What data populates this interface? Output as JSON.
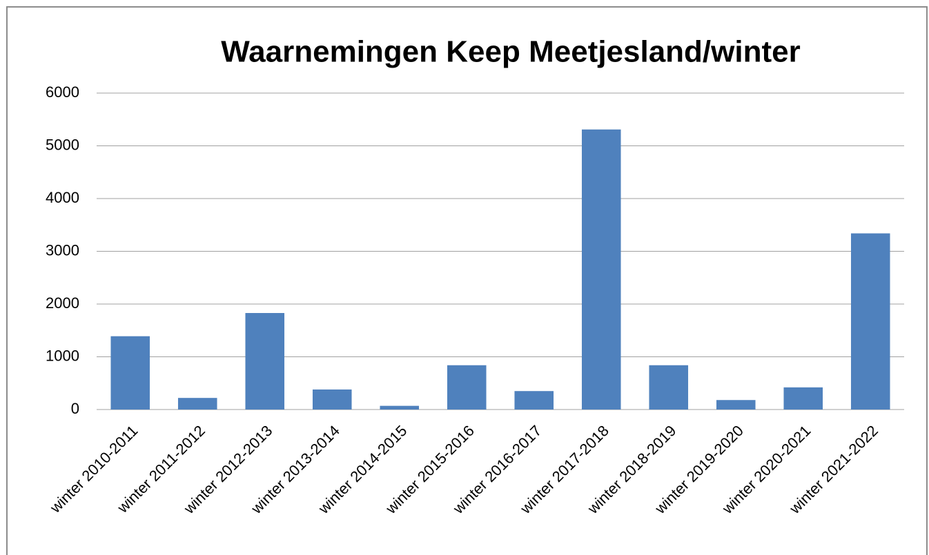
{
  "chart_data": {
    "type": "bar",
    "title": "Waarnemingen Keep Meetjesland/winter",
    "categories": [
      "winter 2010-2011",
      "winter 2011-2012",
      "winter 2012-2013",
      "winter 2013-2014",
      "winter 2014-2015",
      "winter 2015-2016",
      "winter 2016-2017",
      "winter 2017-2018",
      "winter 2018-2019",
      "winter 2019-2020",
      "winter 2020-2021",
      "winter 2021-2022"
    ],
    "values": [
      1390,
      220,
      1830,
      380,
      70,
      840,
      350,
      5310,
      840,
      180,
      420,
      3340
    ],
    "color": "#4f81bd",
    "ylim": [
      0,
      6000
    ],
    "yticks": [
      0,
      1000,
      2000,
      3000,
      4000,
      5000,
      6000
    ],
    "grid": true
  }
}
